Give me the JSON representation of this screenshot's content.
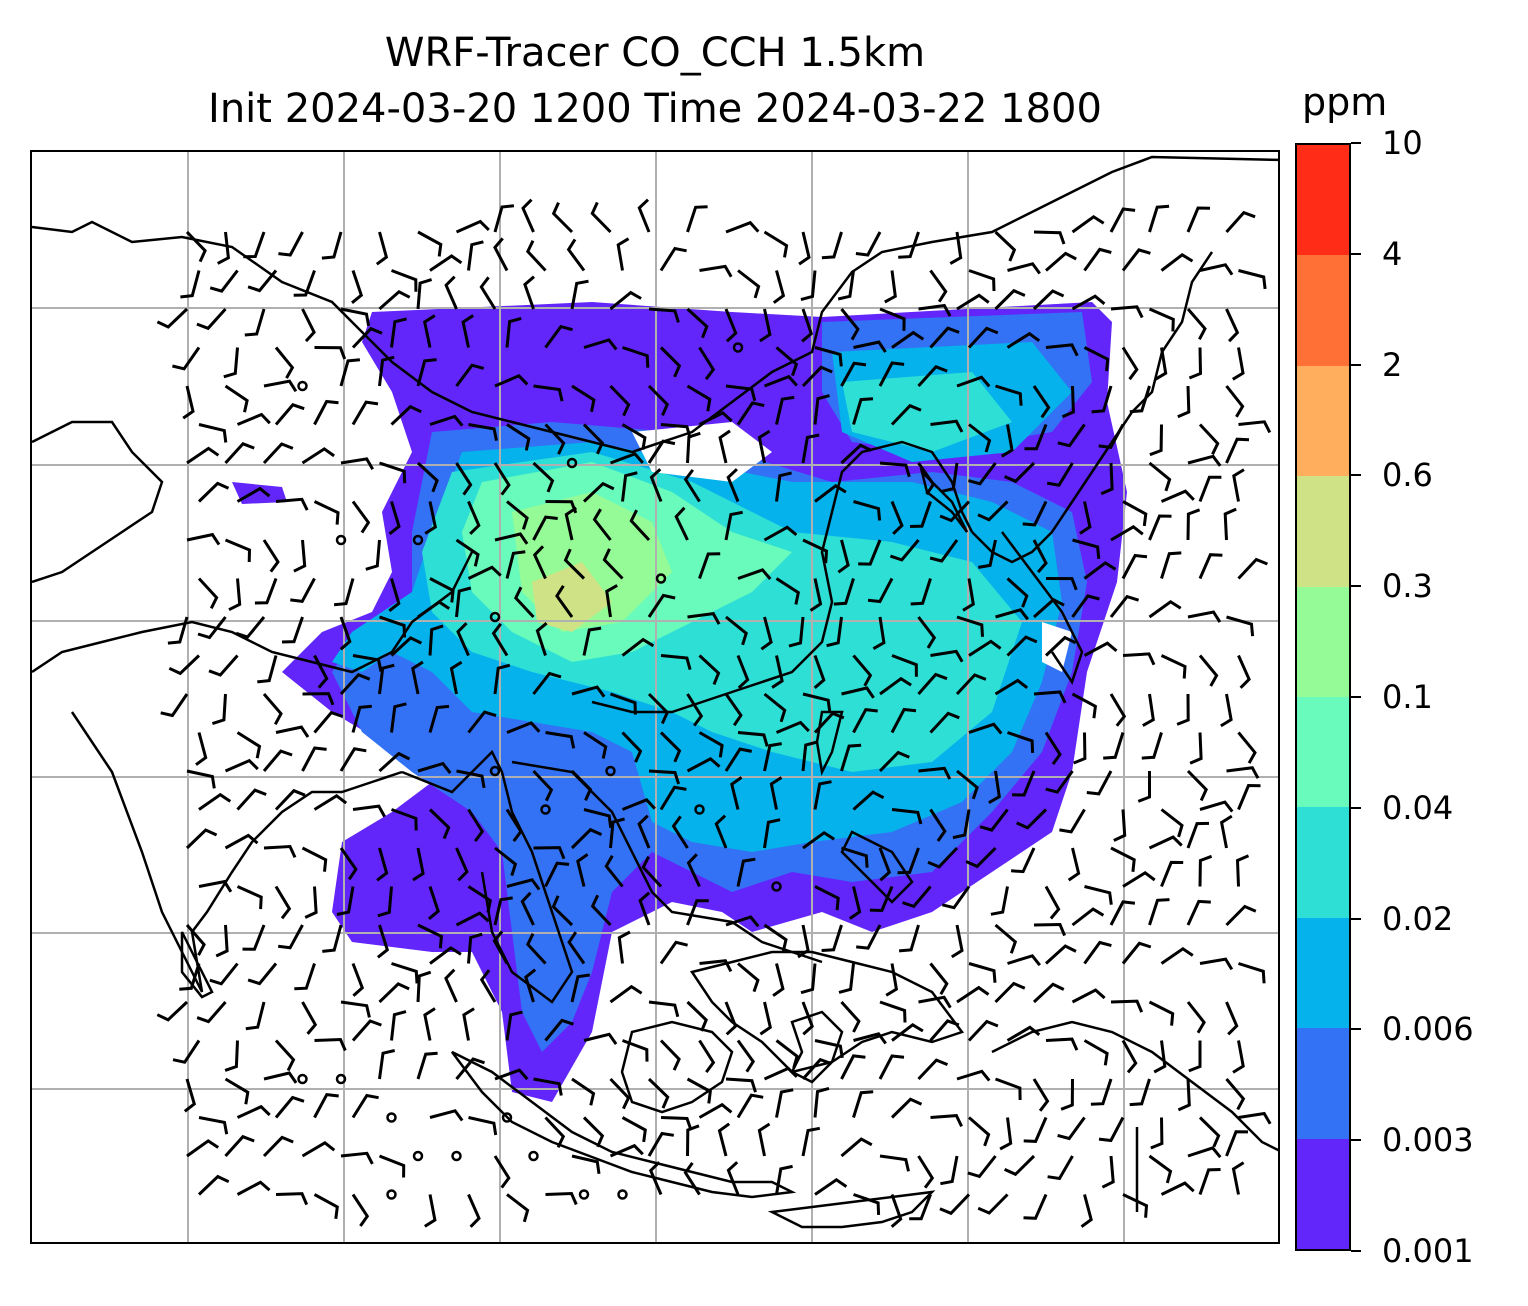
{
  "title_line1": "WRF-Tracer CO_CCH 1.5km",
  "title_line2": "Init 2024-03-20 1200 Time 2024-03-22 1800",
  "colorbar": {
    "unit": "ppm",
    "levels": [
      "0.001",
      "0.003",
      "0.006",
      "0.02",
      "0.04",
      "0.1",
      "0.3",
      "0.6",
      "2",
      "4",
      "10"
    ],
    "colors": [
      "#6226fa",
      "#3372f4",
      "#05b2eb",
      "#2edfd6",
      "#68fbbb",
      "#94fb97",
      "#cfe286",
      "#ffae5d",
      "#ff7036",
      "#ff2c18"
    ]
  },
  "map": {
    "gridlines": true,
    "coastlines": true,
    "wind_barbs": true,
    "field": "CO_CCH tracer concentration at 1.5km"
  }
}
